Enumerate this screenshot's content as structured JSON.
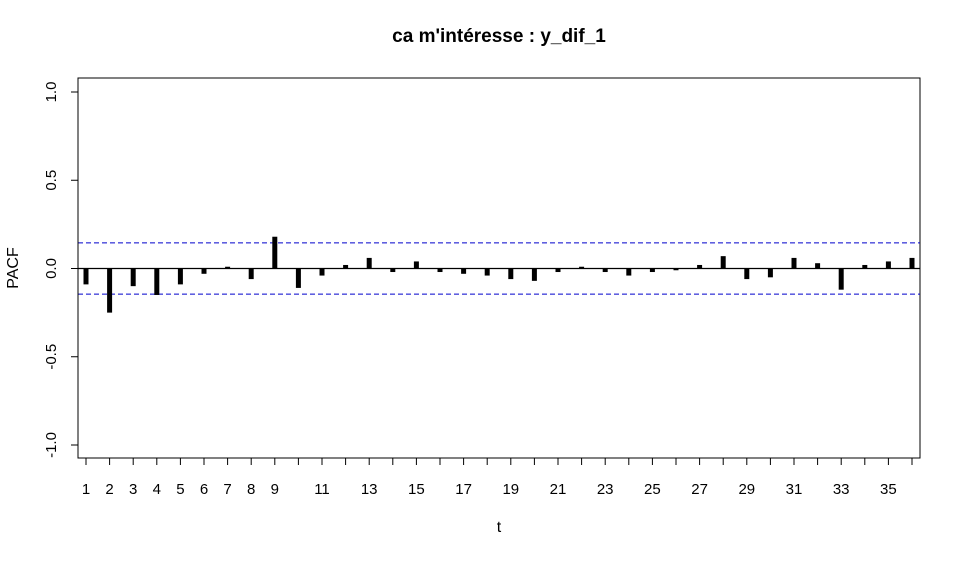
{
  "chart_data": {
    "type": "bar",
    "title": "ca m'intéresse : y_dif_1",
    "xlabel": "t",
    "ylabel": "PACF",
    "ylim": [
      -1.0,
      1.0
    ],
    "xlim": [
      1,
      36
    ],
    "yticks": [
      "-1.0",
      "-0.5",
      "0.0",
      "0.5",
      "1.0"
    ],
    "xticks": [
      "1",
      "2",
      "3",
      "4",
      "5",
      "6",
      "7",
      "8",
      "9",
      "11",
      "13",
      "15",
      "17",
      "19",
      "21",
      "23",
      "25",
      "27",
      "29",
      "31",
      "33",
      "35"
    ],
    "lags": [
      1,
      2,
      3,
      4,
      5,
      6,
      7,
      8,
      9,
      10,
      11,
      12,
      13,
      14,
      15,
      16,
      17,
      18,
      19,
      20,
      21,
      22,
      23,
      24,
      25,
      26,
      27,
      28,
      29,
      30,
      31,
      32,
      33,
      34,
      35,
      36
    ],
    "values": [
      -0.09,
      -0.25,
      -0.1,
      -0.15,
      -0.09,
      -0.03,
      0.01,
      -0.06,
      0.18,
      -0.11,
      -0.04,
      0.02,
      0.06,
      -0.02,
      0.04,
      -0.02,
      -0.03,
      -0.04,
      -0.06,
      -0.07,
      -0.02,
      0.01,
      -0.02,
      -0.04,
      -0.02,
      -0.01,
      0.02,
      0.07,
      -0.06,
      -0.05,
      0.06,
      0.03,
      -0.12,
      0.02,
      0.04,
      0.06
    ],
    "confidence_limits": [
      0.145,
      -0.145
    ],
    "grid": false,
    "legend": "none",
    "colors": {
      "bars": "#000000",
      "limits": "#0000cc",
      "zero_line": "#000000",
      "frame": "#000000"
    }
  }
}
